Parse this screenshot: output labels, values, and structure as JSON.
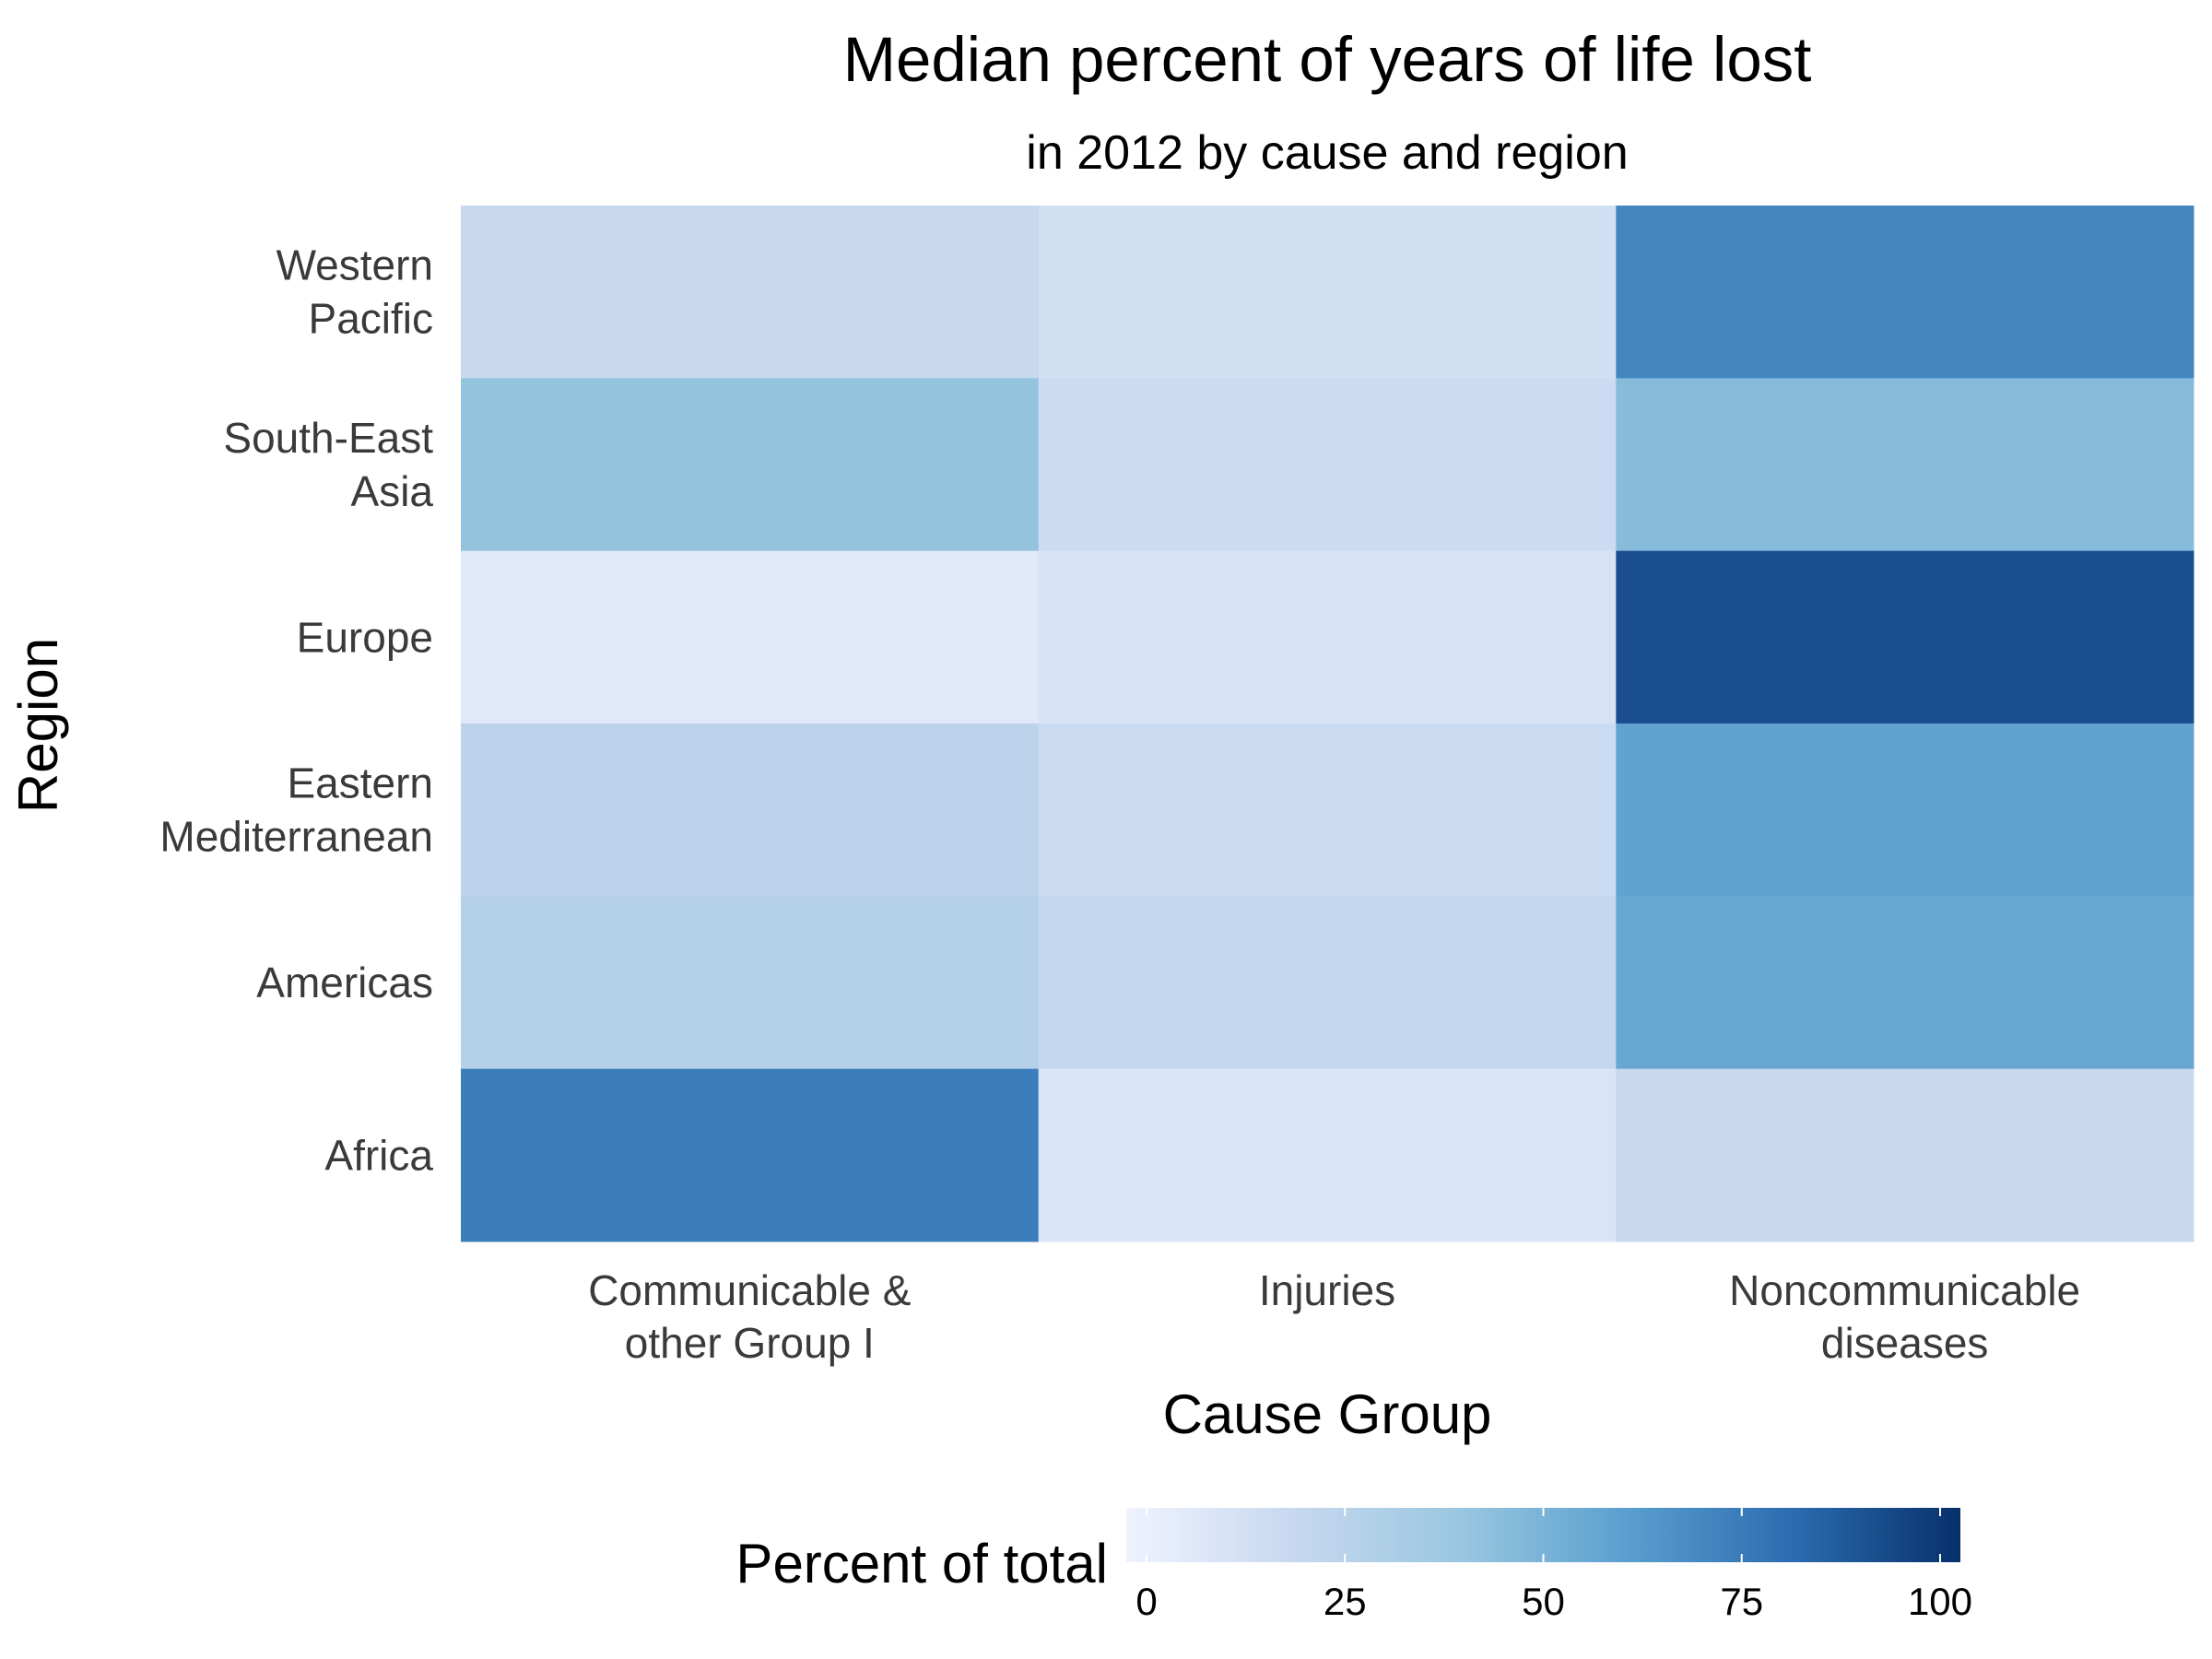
{
  "chart_data": {
    "type": "heatmap",
    "title": "Median percent of years of life lost",
    "subtitle": "in 2012 by cause and region",
    "xlabel": "Cause Group",
    "ylabel": "Region",
    "x_categories": [
      "Communicable & other Group I",
      "Injuries",
      "Noncommunicable diseases"
    ],
    "y_categories": [
      "Western Pacific",
      "South-East Asia",
      "Europe",
      "Eastern Mediterranean",
      "Americas",
      "Africa"
    ],
    "x_tick_lines": [
      [
        "Communicable &",
        "other Group I"
      ],
      [
        "Injuries"
      ],
      [
        "Noncommunicable",
        "diseases"
      ]
    ],
    "y_tick_lines": [
      [
        "Western",
        "Pacific"
      ],
      [
        "South-East",
        "Asia"
      ],
      [
        "Europe"
      ],
      [
        "Eastern",
        "Mediterranean"
      ],
      [
        "Americas"
      ],
      [
        "Africa"
      ]
    ],
    "values": [
      [
        20,
        15,
        70
      ],
      [
        42,
        18,
        46
      ],
      [
        8,
        12,
        90
      ],
      [
        25,
        18,
        58
      ],
      [
        28,
        21,
        56
      ],
      [
        73,
        11,
        20
      ]
    ],
    "colorbar": {
      "title": "Percent of total",
      "range": [
        0,
        100
      ],
      "ticks": [
        0,
        25,
        50,
        75,
        100
      ],
      "tick_labels": [
        "0",
        "25",
        "50",
        "75",
        "100"
      ],
      "placement": "bottom",
      "colors": [
        "#f0f3ff",
        "#c7d8ef",
        "#9ac7e0",
        "#5a9fcf",
        "#2b6cb0",
        "#08306b"
      ]
    },
    "grid": false
  }
}
